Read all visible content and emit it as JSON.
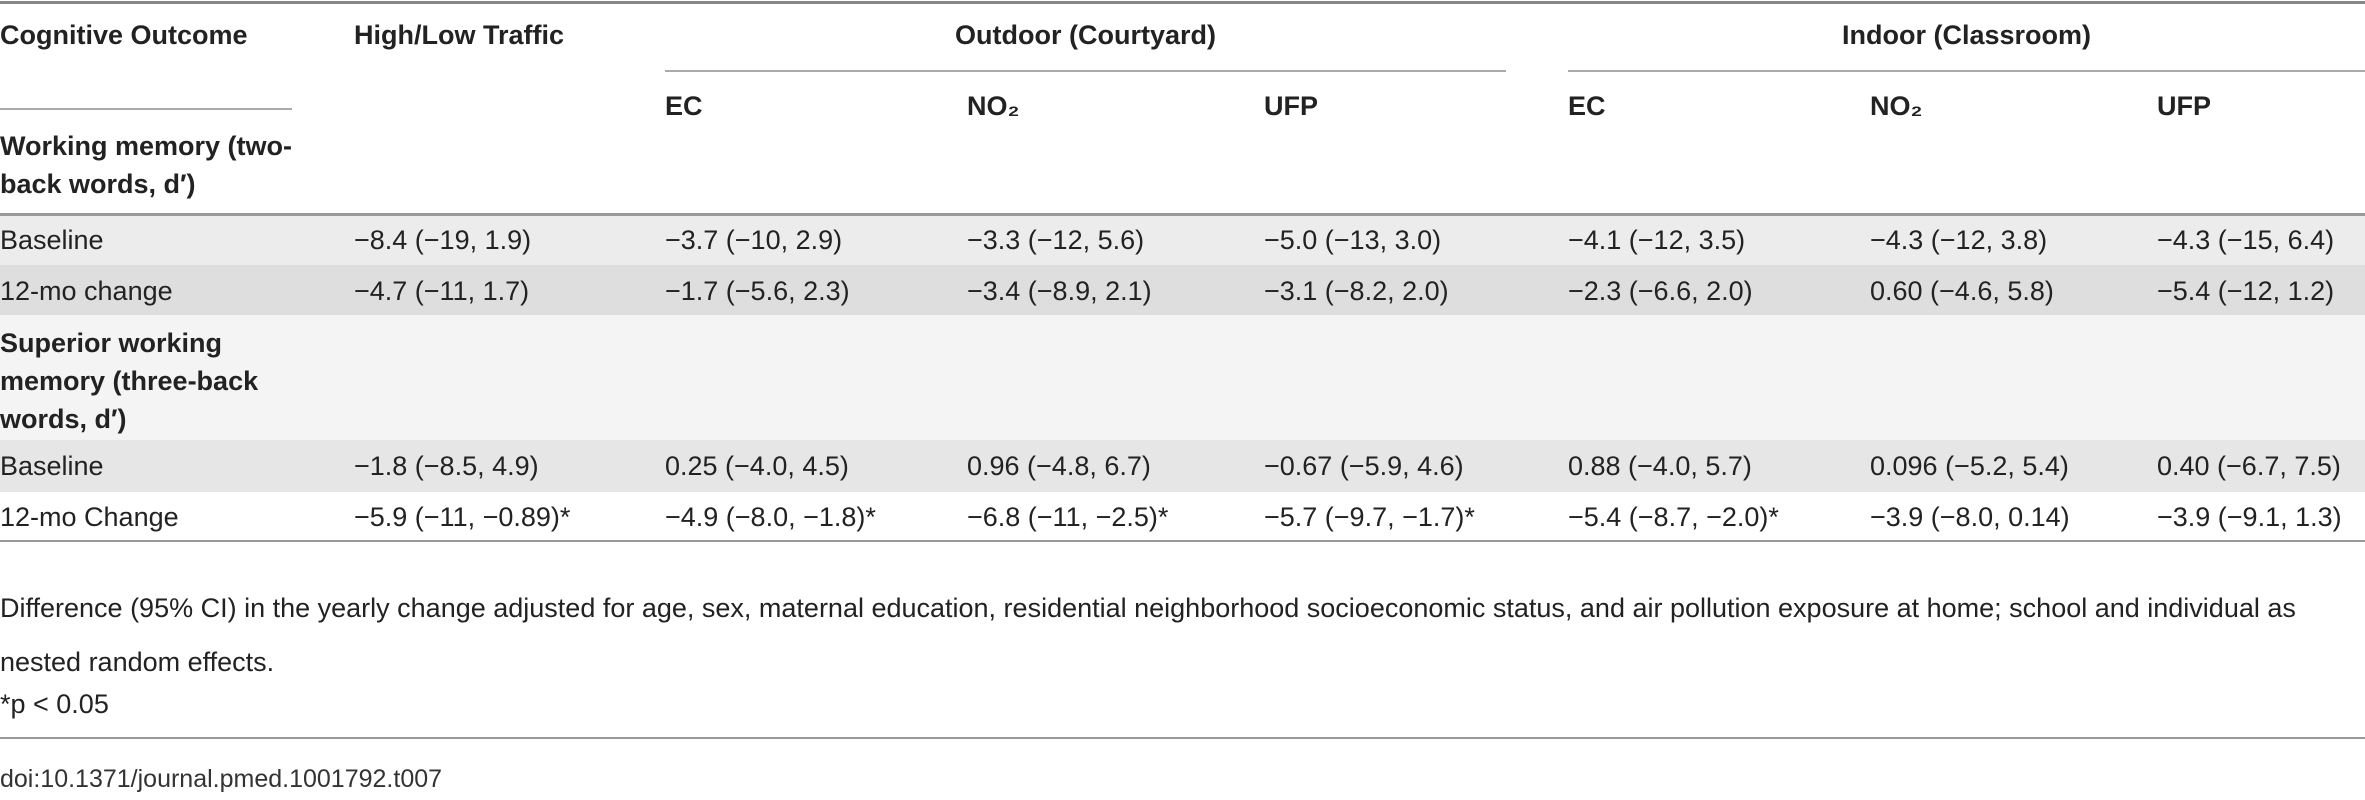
{
  "table": {
    "header": {
      "outcome": "Cognitive Outcome",
      "traffic": "High/Low Traffic",
      "groups": [
        "Outdoor (Courtyard)",
        "Indoor (Classroom)"
      ],
      "subheaders": [
        "EC",
        "NO₂",
        "UFP",
        "EC",
        "NO₂",
        "UFP"
      ]
    },
    "sections": [
      {
        "label": "Working memory (two-back words, d′)",
        "rows": [
          {
            "label": "Baseline",
            "cells": [
              "−8.4 (−19, 1.9)",
              "−3.7 (−10, 2.9)",
              "−3.3 (−12, 5.6)",
              "−5.0 (−13, 3.0)",
              "−4.1 (−12, 3.5)",
              "−4.3 (−12, 3.8)",
              "−4.3 (−15, 6.4)"
            ]
          },
          {
            "label": "12-mo change",
            "cells": [
              "−4.7 (−11, 1.7)",
              "−1.7 (−5.6, 2.3)",
              "−3.4 (−8.9, 2.1)",
              "−3.1 (−8.2, 2.0)",
              "−2.3 (−6.6, 2.0)",
              "0.60 (−4.6, 5.8)",
              "−5.4 (−12, 1.2)"
            ]
          }
        ]
      },
      {
        "label": "Superior working memory (three-back words, d′)",
        "rows": [
          {
            "label": "Baseline",
            "cells": [
              "−1.8 (−8.5, 4.9)",
              "0.25 (−4.0, 4.5)",
              "0.96 (−4.8, 6.7)",
              "−0.67 (−5.9, 4.6)",
              "0.88 (−4.0, 5.7)",
              "0.096 (−5.2, 5.4)",
              "0.40 (−6.7, 7.5)"
            ]
          },
          {
            "label": "12-mo Change",
            "cells": [
              "−5.9 (−11, −0.89)*",
              "−4.9 (−8.0, −1.8)*",
              "−6.8 (−11, −2.5)*",
              "−5.7 (−9.7, −1.7)*",
              "−5.4 (−8.7, −2.0)*",
              "−3.9 (−8.0, 0.14)",
              "−3.9 (−9.1, 1.3)"
            ]
          }
        ]
      }
    ]
  },
  "footnotes": [
    "Difference (95% CI) in the yearly change adjusted for age, sex, maternal education, residential neighborhood socioeconomic status, and air pollution exposure at home; school and individual as nested random effects.",
    "*p < 0.05"
  ],
  "doi": "doi:10.1371/journal.pmed.1001792.t007"
}
